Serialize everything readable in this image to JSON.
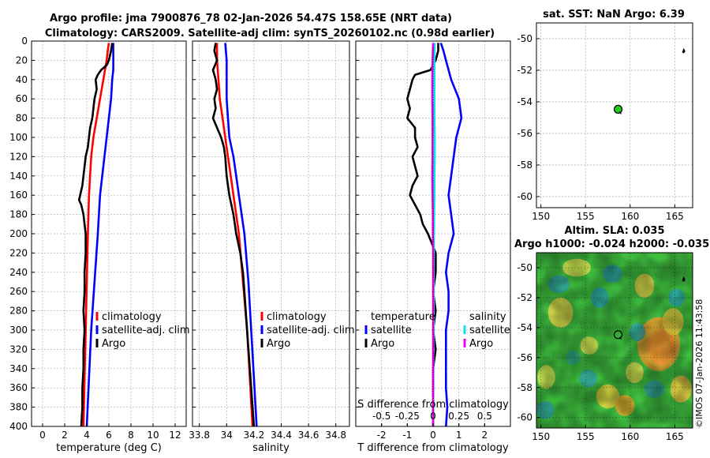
{
  "title_line1": "Argo profile: jma 7900876_78 02-Jan-2026 54.47S 158.65E (NRT data)",
  "title_line2": "Climatology: CARS2009. Satellite-adj clim: synTS_20260102.nc (0.98d earlier)",
  "watermark": "©IMOS 07-Jan-2026 11:43:58",
  "colors": {
    "climatology": "#ff0000",
    "satellite": "#0000ff",
    "argo": "#000000",
    "sat_diff": "#00e5ee",
    "sal_diff": "#ee00ee",
    "grid": "#b0b0b0"
  },
  "chart_data": [
    {
      "id": "temperature",
      "type": "line",
      "xlabel": "temperature (deg C)",
      "ylabel": "",
      "xlim": [
        -1,
        13
      ],
      "ylim": [
        400,
        0
      ],
      "xticks": [
        0,
        2,
        4,
        6,
        8,
        10,
        12
      ],
      "yticks": [
        0,
        20,
        40,
        60,
        80,
        100,
        120,
        140,
        160,
        180,
        200,
        220,
        240,
        260,
        280,
        300,
        320,
        340,
        360,
        380,
        400
      ],
      "legend": [
        "climatology",
        "satellite-adj. clim",
        "Argo"
      ],
      "series": [
        {
          "name": "climatology",
          "color": "#ff0000",
          "depth": [
            2,
            10,
            20,
            40,
            60,
            80,
            100,
            120,
            140,
            160,
            180,
            200,
            250,
            300,
            350,
            400
          ],
          "values": [
            6.0,
            5.9,
            5.8,
            5.5,
            5.2,
            4.9,
            4.6,
            4.4,
            4.3,
            4.2,
            4.15,
            4.1,
            4.0,
            3.9,
            3.8,
            3.7
          ]
        },
        {
          "name": "satellite-adj. clim",
          "color": "#0000ff",
          "depth": [
            2,
            10,
            20,
            30,
            40,
            60,
            80,
            100,
            120,
            140,
            160,
            180,
            200,
            250,
            300,
            350,
            400
          ],
          "values": [
            6.4,
            6.4,
            6.4,
            6.4,
            6.3,
            6.2,
            6.0,
            5.8,
            5.6,
            5.4,
            5.2,
            5.1,
            5.0,
            4.7,
            4.4,
            4.2,
            4.0
          ]
        },
        {
          "name": "Argo",
          "color": "#000000",
          "depth": [
            2,
            10,
            20,
            25,
            30,
            35,
            40,
            50,
            60,
            70,
            80,
            90,
            100,
            110,
            120,
            130,
            140,
            150,
            160,
            165,
            170,
            180,
            190,
            200,
            220,
            240,
            260,
            280,
            300,
            320,
            340,
            360,
            380,
            400
          ],
          "values": [
            6.3,
            6.2,
            6.0,
            5.8,
            5.3,
            5.0,
            4.8,
            4.9,
            4.7,
            4.6,
            4.5,
            4.3,
            4.2,
            4.1,
            3.9,
            3.8,
            3.7,
            3.6,
            3.4,
            3.3,
            3.5,
            3.7,
            3.8,
            3.9,
            3.9,
            3.8,
            3.8,
            3.7,
            3.8,
            3.7,
            3.7,
            3.6,
            3.6,
            3.5
          ]
        }
      ]
    },
    {
      "id": "salinity",
      "type": "line",
      "xlabel": "salinity",
      "xlim": [
        33.75,
        34.9
      ],
      "ylim": [
        400,
        0
      ],
      "xticks": [
        33.8,
        34,
        34.2,
        34.4,
        34.6,
        34.8
      ],
      "xticklabels": [
        "33.8",
        "34",
        "34.2",
        "34.4",
        "34.6",
        "34.8"
      ],
      "legend": [
        "climatology",
        "satellite-adj. clim",
        "Argo"
      ],
      "series": [
        {
          "name": "climatology",
          "color": "#ff0000",
          "depth": [
            2,
            20,
            40,
            60,
            80,
            100,
            120,
            140,
            160,
            180,
            200,
            250,
            300,
            350,
            400
          ],
          "values": [
            33.93,
            33.93,
            33.94,
            33.95,
            33.97,
            33.99,
            34.01,
            34.03,
            34.05,
            34.07,
            34.09,
            34.12,
            34.15,
            34.17,
            34.19
          ]
        },
        {
          "name": "satellite-adj. clim",
          "color": "#0000ff",
          "depth": [
            2,
            20,
            40,
            60,
            80,
            100,
            120,
            140,
            160,
            180,
            200,
            250,
            300,
            350,
            400
          ],
          "values": [
            33.99,
            34.0,
            34.0,
            34.0,
            34.01,
            34.02,
            34.05,
            34.07,
            34.09,
            34.11,
            34.13,
            34.16,
            34.18,
            34.2,
            34.22
          ]
        },
        {
          "name": "Argo",
          "color": "#000000",
          "depth": [
            2,
            10,
            20,
            30,
            40,
            50,
            60,
            70,
            80,
            90,
            100,
            110,
            120,
            140,
            160,
            180,
            200,
            220,
            240,
            260,
            280,
            300,
            320,
            340,
            360,
            380,
            400
          ],
          "values": [
            33.92,
            33.91,
            33.93,
            33.9,
            33.92,
            33.93,
            33.91,
            33.92,
            33.9,
            33.93,
            33.96,
            33.98,
            33.99,
            34.0,
            34.02,
            34.05,
            34.07,
            34.1,
            34.12,
            34.13,
            34.14,
            34.15,
            34.16,
            34.17,
            34.18,
            34.19,
            34.2
          ]
        }
      ]
    },
    {
      "id": "differences",
      "type": "line",
      "xlabel": "T difference from climatology",
      "top_xlabel": "S difference from climatology",
      "xlim": [
        -3,
        3
      ],
      "ylim": [
        400,
        0
      ],
      "xticks": [
        -2,
        -1,
        0,
        1,
        2
      ],
      "top_xticks": [
        -0.5,
        -0.25,
        0,
        0.25,
        0.5
      ],
      "top_xticklabels": [
        "-0.5",
        "-0.25",
        "0",
        "0.25",
        "0.5"
      ],
      "legend_left_title": "temperature",
      "legend_right_title": "salinity",
      "legend": [
        "satellite",
        "Argo",
        "satellite",
        "Argo"
      ],
      "series": [
        {
          "name": "T satellite",
          "color": "#0000ff",
          "depth": [
            2,
            10,
            20,
            40,
            60,
            80,
            100,
            120,
            140,
            160,
            180,
            200,
            220,
            240,
            260,
            280,
            300,
            320,
            340,
            360,
            380,
            400
          ],
          "values": [
            0.3,
            0.4,
            0.5,
            0.7,
            1.0,
            1.1,
            0.9,
            0.8,
            0.7,
            0.6,
            0.7,
            0.8,
            0.6,
            0.5,
            0.6,
            0.6,
            0.5,
            0.5,
            0.5,
            0.5,
            0.55,
            0.5
          ]
        },
        {
          "name": "T Argo",
          "color": "#000000",
          "depth": [
            2,
            10,
            20,
            30,
            35,
            40,
            50,
            60,
            70,
            80,
            90,
            100,
            110,
            120,
            130,
            140,
            150,
            160,
            170,
            180,
            190,
            200,
            220,
            240,
            260,
            280,
            300,
            320,
            340,
            360,
            380,
            400
          ],
          "values": [
            0.2,
            0.2,
            0.1,
            -0.1,
            -0.7,
            -0.8,
            -0.9,
            -1.0,
            -0.9,
            -1.0,
            -0.7,
            -0.7,
            -0.6,
            -0.8,
            -0.7,
            -0.6,
            -0.8,
            -0.9,
            -0.7,
            -0.5,
            -0.4,
            -0.2,
            0.1,
            0.1,
            0.0,
            0.1,
            0.0,
            0.1,
            0.0,
            0.0,
            0.0,
            0.0
          ]
        },
        {
          "name": "S satellite",
          "color": "#00e5ee",
          "depth": [
            2,
            20,
            40,
            60,
            80,
            100,
            120,
            140,
            160,
            180,
            200,
            220,
            240,
            260,
            280,
            300,
            320,
            340,
            360,
            380,
            400
          ],
          "values": [
            0.06,
            0.05,
            0.05,
            0.05,
            0.05,
            0.06,
            0.06,
            0.05,
            0.05,
            0.04,
            0.03,
            0.03,
            0.02,
            0.02,
            0.02,
            0.02,
            0.01,
            0.01,
            0.01,
            0.0,
            0.0
          ]
        },
        {
          "name": "S Argo",
          "color": "#ee00ee",
          "depth": [
            2,
            20,
            40,
            60,
            80,
            100,
            120,
            140,
            160,
            180,
            200,
            220,
            240,
            260,
            280,
            300,
            320,
            340,
            360,
            380,
            400
          ],
          "values": [
            0.0,
            -0.02,
            -0.03,
            -0.03,
            -0.02,
            -0.02,
            -0.02,
            -0.03,
            -0.02,
            -0.01,
            -0.01,
            0.0,
            0.0,
            0.0,
            0.0,
            0.0,
            0.0,
            0.0,
            0.0,
            0.0,
            0.0
          ]
        }
      ]
    },
    {
      "id": "sst_map",
      "type": "scatter",
      "title": "sat. SST: NaN Argo: 6.39",
      "xlim": [
        149.5,
        167
      ],
      "ylim": [
        -60.7,
        -49
      ],
      "xticks": [
        150,
        155,
        160,
        165
      ],
      "yticks": [
        -50,
        -52,
        -54,
        -56,
        -58,
        -60
      ],
      "points": [
        {
          "lon": 158.65,
          "lat": -54.47,
          "label": "profile"
        },
        {
          "lon": 166.0,
          "lat": -50.8,
          "label": "island"
        }
      ]
    },
    {
      "id": "sla_map",
      "type": "heatmap",
      "title_line1": "Altim. SLA: 0.035",
      "title_line2": "Argo h1000: -0.024 h2000: -0.035",
      "xlim": [
        149.5,
        167
      ],
      "ylim": [
        -60.7,
        -49
      ],
      "xticks": [
        150,
        155,
        160,
        165
      ],
      "yticks": [
        -50,
        -52,
        -54,
        -56,
        -58,
        -60
      ],
      "points": [
        {
          "lon": 158.65,
          "lat": -54.47,
          "label": "profile"
        },
        {
          "lon": 166.0,
          "lat": -50.8,
          "label": "island"
        }
      ]
    }
  ]
}
